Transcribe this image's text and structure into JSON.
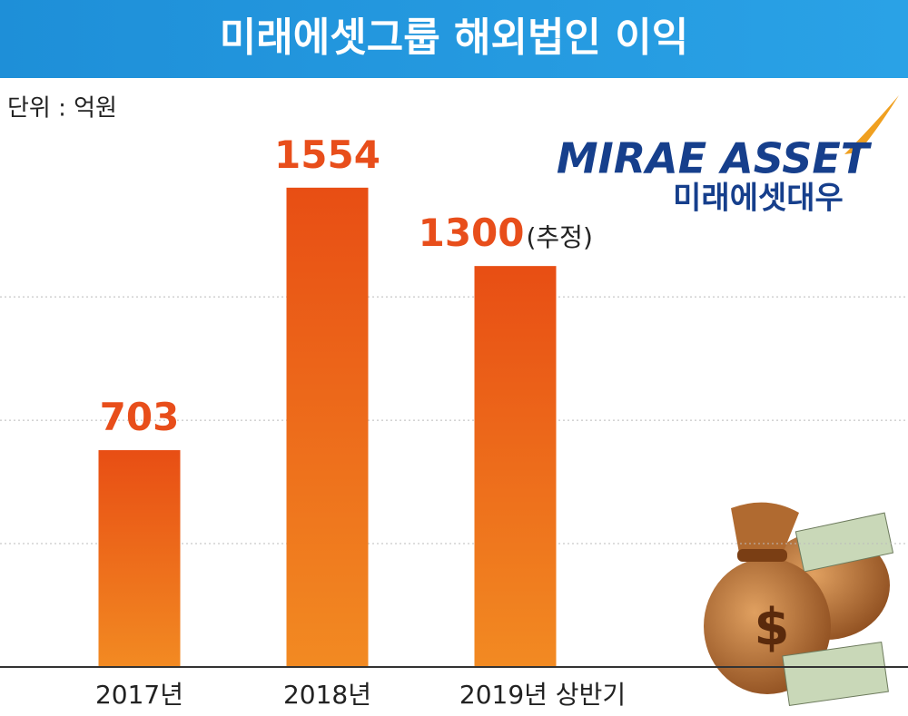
{
  "chart_data": {
    "type": "bar",
    "title": "미래에셋그룹 해외법인 이익",
    "unit_label": "단위 : 억원",
    "categories": [
      "2017년",
      "2018년",
      "2019년 상반기"
    ],
    "values": [
      703,
      1554,
      1300
    ],
    "annotation": {
      "index": 2,
      "text": "(추정)"
    },
    "color": "#ee7a1c",
    "label_color": "#e84e1b",
    "ylim": [
      0,
      1780
    ],
    "yticks": [
      400,
      800,
      1200
    ],
    "grid": true,
    "logo": {
      "brand": "MIRAE ASSET",
      "name": "미래에셋대우"
    }
  }
}
